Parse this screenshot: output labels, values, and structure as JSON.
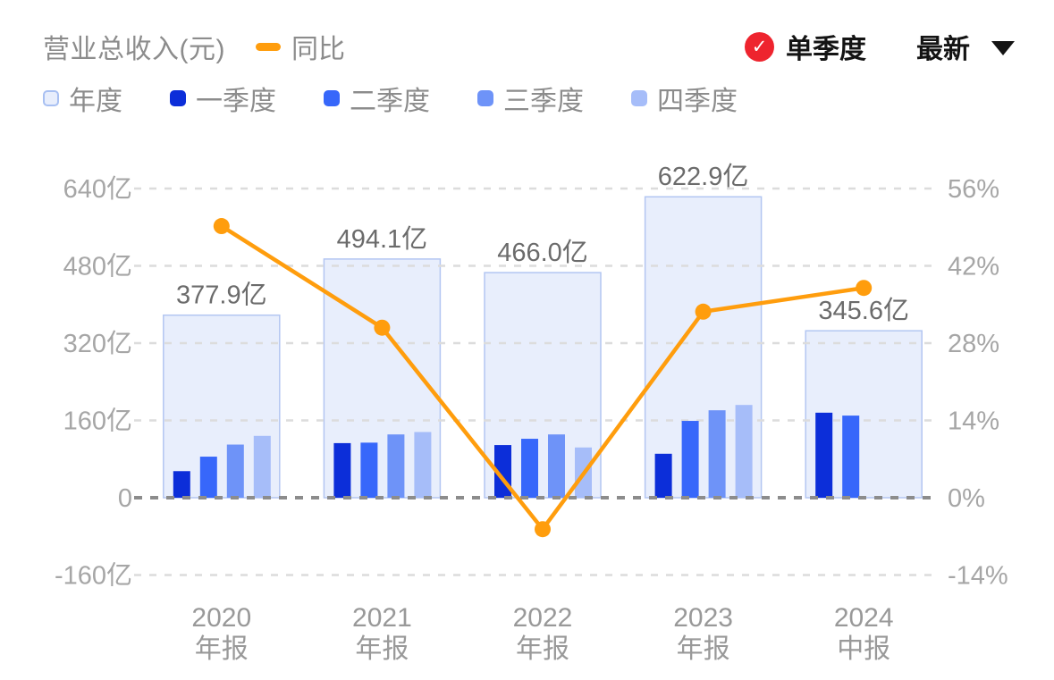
{
  "header": {
    "title": "营业总收入(元)",
    "yoy_legend_label": "同比",
    "quarter_toggle": {
      "label": "单季度",
      "checked": true
    },
    "latest_dropdown_label": "最新"
  },
  "legend": {
    "items": [
      {
        "label": "年度",
        "fill": "#e8eefc",
        "border": "#a8c0f2"
      },
      {
        "label": "一季度",
        "fill": "#0c2ed9"
      },
      {
        "label": "二季度",
        "fill": "#3767fa"
      },
      {
        "label": "三季度",
        "fill": "#6e93f8"
      },
      {
        "label": "四季度",
        "fill": "#a6bdf9"
      }
    ]
  },
  "theme": {
    "line_color": "#ff9d0d",
    "toggle_red": "#ee242e",
    "annual_fill": "#e8eefc",
    "annual_border": "#b3c6f2",
    "grid": "#dcdcdc",
    "zero_line": "#8c8c8c",
    "axis_text": "#a6a6a6",
    "value_text": "#6b6b6b",
    "xlabel_text": "#999999"
  },
  "chart_data": {
    "type": "bar+line",
    "title": "营业总收入(元)",
    "x_categories": [
      {
        "line1": "2020",
        "line2": "年报"
      },
      {
        "line1": "2021",
        "line2": "年报"
      },
      {
        "line1": "2022",
        "line2": "年报"
      },
      {
        "line1": "2023",
        "line2": "年报"
      },
      {
        "line1": "2024",
        "line2": "中报"
      }
    ],
    "annual": {
      "name": "年度",
      "values": [
        377.9,
        494.1,
        466.0,
        622.9,
        345.6
      ],
      "labels": [
        "377.9亿",
        "494.1亿",
        "466.0亿",
        "622.9亿",
        "345.6亿"
      ]
    },
    "quarterly_series": [
      {
        "name": "一季度",
        "color": "#0c2ed9",
        "values": [
          55,
          113,
          109,
          91,
          176
        ]
      },
      {
        "name": "二季度",
        "color": "#3767fa",
        "values": [
          85,
          114,
          122,
          159,
          170
        ]
      },
      {
        "name": "三季度",
        "color": "#6e93f8",
        "values": [
          110,
          131,
          131,
          181,
          null
        ]
      },
      {
        "name": "四季度",
        "color": "#a6bdf9",
        "values": [
          128,
          136,
          104,
          192,
          null
        ]
      }
    ],
    "yoy_line": {
      "name": "同比",
      "color": "#ff9d0d",
      "values_pct": [
        49.2,
        30.8,
        -5.7,
        33.7,
        38.0
      ]
    },
    "left_axis": {
      "unit": "亿",
      "ticks": [
        640,
        480,
        320,
        160,
        0,
        -160
      ],
      "labels": [
        "640亿",
        "480亿",
        "320亿",
        "160亿",
        "0",
        "-160亿"
      ],
      "range": [
        -160,
        640
      ]
    },
    "right_axis": {
      "ticks_pct": [
        56,
        42,
        28,
        14,
        0,
        -14
      ],
      "labels": [
        "56%",
        "42%",
        "28%",
        "14%",
        "0%",
        "-14%"
      ],
      "range_pct": [
        -14,
        56
      ]
    },
    "grid": "horizontal-dashed",
    "legend_position": "top-left"
  }
}
